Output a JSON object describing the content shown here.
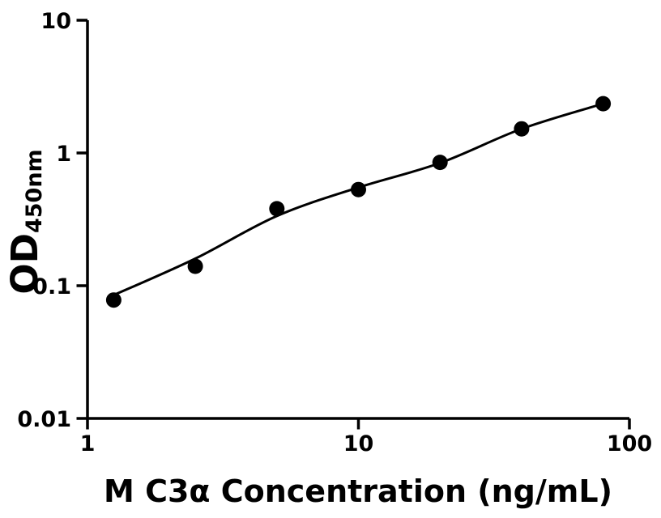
{
  "figure": {
    "background": "#ffffff",
    "ink": "#000000"
  },
  "chart_data": {
    "type": "scatter",
    "title": "",
    "xlabel": "M C3α Concentration (ng/mL)",
    "ylabel": "OD450nm",
    "ylabel_main": "OD",
    "ylabel_sub": "450nm",
    "x_scale": "log",
    "y_scale": "log",
    "xlim": [
      1,
      100
    ],
    "ylim": [
      0.01,
      10
    ],
    "grid": false,
    "legend": false,
    "x_ticks": [
      {
        "value": 1,
        "label": "1"
      },
      {
        "value": 10,
        "label": "10"
      },
      {
        "value": 100,
        "label": "100"
      }
    ],
    "y_ticks": [
      {
        "value": 0.01,
        "label": "0.01"
      },
      {
        "value": 0.1,
        "label": "0.1"
      },
      {
        "value": 1,
        "label": "1"
      },
      {
        "value": 10,
        "label": "10"
      }
    ],
    "series": [
      {
        "name": "standard-data-points",
        "kind": "scatter",
        "marker": "circle",
        "color": "#000000",
        "x": [
          1.25,
          2.5,
          5,
          10,
          20,
          40,
          80
        ],
        "y": [
          0.078,
          0.14,
          0.38,
          0.53,
          0.85,
          1.52,
          2.35
        ]
      },
      {
        "name": "fit-curve",
        "kind": "line",
        "color": "#000000",
        "x": [
          1.25,
          2.5,
          5,
          10,
          20,
          40,
          80
        ],
        "y": [
          0.085,
          0.16,
          0.335,
          0.55,
          0.84,
          1.52,
          2.35
        ]
      }
    ]
  }
}
